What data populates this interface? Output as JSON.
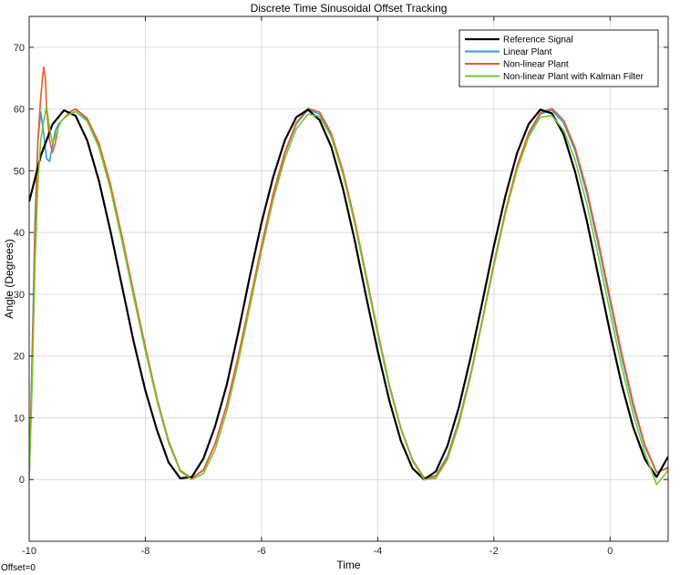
{
  "chart_data": {
    "type": "line",
    "title": "Discrete Time Sinusoidal Offset Tracking",
    "xlabel": "Time",
    "ylabel": "Angle (Degrees)",
    "xlim": [
      -10,
      1
    ],
    "ylim": [
      -10,
      75
    ],
    "xticks": [
      -10,
      -8,
      -6,
      -4,
      -2,
      0
    ],
    "yticks": [
      0,
      10,
      20,
      30,
      40,
      50,
      60,
      70
    ],
    "grid": true,
    "legend_position": "top-right",
    "corner_note": "Offset=0",
    "series": [
      {
        "name": "Reference Signal",
        "color": "#000000",
        "x": [
          -10.0,
          -9.8,
          -9.6,
          -9.4,
          -9.2,
          -9.0,
          -8.8,
          -8.6,
          -8.4,
          -8.2,
          -8.0,
          -7.8,
          -7.6,
          -7.4,
          -7.2,
          -7.0,
          -6.8,
          -6.6,
          -6.4,
          -6.2,
          -6.0,
          -5.8,
          -5.6,
          -5.4,
          -5.2,
          -5.0,
          -4.8,
          -4.6,
          -4.4,
          -4.2,
          -4.0,
          -3.8,
          -3.6,
          -3.4,
          -3.2,
          -3.0,
          -2.8,
          -2.6,
          -2.4,
          -2.2,
          -2.0,
          -1.8,
          -1.6,
          -1.4,
          -1.2,
          -1.0,
          -0.8,
          -0.6,
          -0.4,
          -0.2,
          0.0,
          0.2,
          0.4,
          0.6,
          0.8,
          1.0
        ],
        "y": [
          45.0,
          52.4,
          57.5,
          59.8,
          58.9,
          54.9,
          48.4,
          40.2,
          31.2,
          22.3,
          14.4,
          8.0,
          2.8,
          0.2,
          0.4,
          3.4,
          8.6,
          15.3,
          23.8,
          33.0,
          41.6,
          49.0,
          54.9,
          58.7,
          59.9,
          58.2,
          53.9,
          47.2,
          38.9,
          29.7,
          20.8,
          12.8,
          6.2,
          1.8,
          0.0,
          1.3,
          5.4,
          11.8,
          19.8,
          28.7,
          37.8,
          46.0,
          52.9,
          57.6,
          59.9,
          59.3,
          55.9,
          49.8,
          41.9,
          32.9,
          23.8,
          15.4,
          8.4,
          3.3,
          0.4,
          3.7
        ]
      },
      {
        "name": "Linear Plant",
        "color": "#2b9be8",
        "x": [
          -10.0,
          -9.95,
          -9.9,
          -9.85,
          -9.8,
          -9.75,
          -9.7,
          -9.65,
          -9.6,
          -9.55,
          -9.5,
          -9.45,
          -9.4,
          -9.3,
          -9.2,
          -9.0,
          -8.8,
          -8.6,
          -8.4,
          -8.2,
          -8.0,
          -7.8,
          -7.6,
          -7.4,
          -7.2,
          -7.0,
          -6.8,
          -6.6,
          -6.4,
          -6.2,
          -6.0,
          -5.8,
          -5.6,
          -5.4,
          -5.2,
          -5.0,
          -4.8,
          -4.6,
          -4.4,
          -4.2,
          -4.0,
          -3.8,
          -3.6,
          -3.4,
          -3.2,
          -3.0,
          -2.8,
          -2.6,
          -2.4,
          -2.2,
          -2.0,
          -1.8,
          -1.6,
          -1.4,
          -1.2,
          -1.0,
          -0.8,
          -0.6,
          -0.4,
          -0.2,
          0.0,
          0.2,
          0.4,
          0.6,
          0.8,
          1.0
        ],
        "y": [
          0.0,
          20.0,
          42.0,
          55.0,
          59.5,
          56.0,
          52.0,
          51.5,
          54.0,
          56.5,
          57.5,
          58.0,
          58.5,
          59.5,
          60.0,
          58.3,
          54.2,
          47.3,
          38.6,
          29.6,
          20.9,
          12.8,
          6.0,
          1.4,
          0.2,
          1.6,
          5.8,
          12.1,
          20.0,
          28.8,
          37.8,
          46.1,
          52.8,
          57.6,
          59.9,
          59.2,
          55.7,
          49.6,
          41.7,
          32.7,
          23.5,
          15.0,
          8.1,
          3.1,
          0.3,
          0.6,
          3.8,
          9.6,
          17.1,
          25.8,
          34.9,
          43.4,
          50.6,
          56.0,
          59.2,
          59.8,
          57.8,
          53.2,
          46.3,
          37.9,
          28.8,
          19.9,
          11.8,
          5.3,
          1.1,
          2.0
        ]
      },
      {
        "name": "Non-linear Plant",
        "color": "#f05a23",
        "x": [
          -10.0,
          -9.95,
          -9.9,
          -9.85,
          -9.8,
          -9.75,
          -9.72,
          -9.7,
          -9.65,
          -9.6,
          -9.55,
          -9.5,
          -9.45,
          -9.4,
          -9.3,
          -9.2,
          -9.0,
          -8.8,
          -8.6,
          -8.4,
          -8.2,
          -8.0,
          -7.8,
          -7.6,
          -7.4,
          -7.2,
          -7.0,
          -6.8,
          -6.6,
          -6.4,
          -6.2,
          -6.0,
          -5.8,
          -5.6,
          -5.4,
          -5.2,
          -5.0,
          -4.8,
          -4.6,
          -4.4,
          -4.2,
          -4.0,
          -3.8,
          -3.6,
          -3.4,
          -3.2,
          -3.0,
          -2.8,
          -2.6,
          -2.4,
          -2.2,
          -2.0,
          -1.8,
          -1.6,
          -1.4,
          -1.2,
          -1.0,
          -0.8,
          -0.6,
          -0.4,
          -0.2,
          0.0,
          0.2,
          0.4,
          0.6,
          0.8,
          1.0
        ],
        "y": [
          0.0,
          18.0,
          40.0,
          55.0,
          62.0,
          66.8,
          65.0,
          60.0,
          55.0,
          53.0,
          54.5,
          57.0,
          58.0,
          58.5,
          59.5,
          60.0,
          58.5,
          54.5,
          47.8,
          39.3,
          30.3,
          21.5,
          13.2,
          6.3,
          1.5,
          0.2,
          1.5,
          5.7,
          12.0,
          20.0,
          28.9,
          37.9,
          46.3,
          53.0,
          57.8,
          60.1,
          59.5,
          56.1,
          50.1,
          42.2,
          33.2,
          24.0,
          15.4,
          8.3,
          3.2,
          0.2,
          0.5,
          3.6,
          9.4,
          17.0,
          25.8,
          35.0,
          43.6,
          50.8,
          56.2,
          59.4,
          60.1,
          58.2,
          53.7,
          46.9,
          38.5,
          29.4,
          20.5,
          12.3,
          5.6,
          1.2,
          1.8
        ]
      },
      {
        "name": "Non-linear Plant with Kalman Filter",
        "color": "#77c62b",
        "x": [
          -10.0,
          -9.95,
          -9.9,
          -9.85,
          -9.8,
          -9.75,
          -9.7,
          -9.65,
          -9.6,
          -9.55,
          -9.5,
          -9.45,
          -9.4,
          -9.3,
          -9.2,
          -9.0,
          -8.8,
          -8.6,
          -8.4,
          -8.2,
          -8.0,
          -7.8,
          -7.6,
          -7.4,
          -7.2,
          -7.0,
          -6.8,
          -6.6,
          -6.4,
          -6.2,
          -6.0,
          -5.8,
          -5.6,
          -5.4,
          -5.2,
          -5.0,
          -4.8,
          -4.6,
          -4.4,
          -4.2,
          -4.0,
          -3.8,
          -3.6,
          -3.4,
          -3.2,
          -3.0,
          -2.8,
          -2.6,
          -2.4,
          -2.2,
          -2.0,
          -1.8,
          -1.6,
          -1.4,
          -1.2,
          -1.0,
          -0.8,
          -0.6,
          -0.4,
          -0.2,
          0.0,
          0.2,
          0.4,
          0.6,
          0.8,
          1.0
        ],
        "y": [
          0.0,
          15.0,
          35.0,
          48.0,
          55.0,
          58.0,
          60.5,
          57.0,
          54.5,
          55.5,
          57.0,
          58.0,
          58.5,
          59.2,
          59.6,
          58.0,
          53.8,
          47.0,
          38.5,
          29.6,
          20.9,
          12.8,
          6.0,
          1.3,
          0.0,
          1.0,
          4.8,
          11.0,
          19.0,
          28.0,
          37.0,
          45.3,
          52.0,
          56.8,
          59.2,
          58.8,
          55.5,
          49.5,
          41.6,
          32.7,
          23.6,
          15.1,
          8.1,
          3.0,
          0.0,
          0.2,
          3.2,
          9.0,
          16.7,
          25.5,
          34.6,
          43.1,
          50.2,
          55.5,
          58.7,
          58.9,
          56.6,
          51.7,
          44.6,
          36.1,
          27.1,
          18.3,
          10.5,
          4.3,
          -0.8,
          1.5
        ]
      }
    ]
  }
}
